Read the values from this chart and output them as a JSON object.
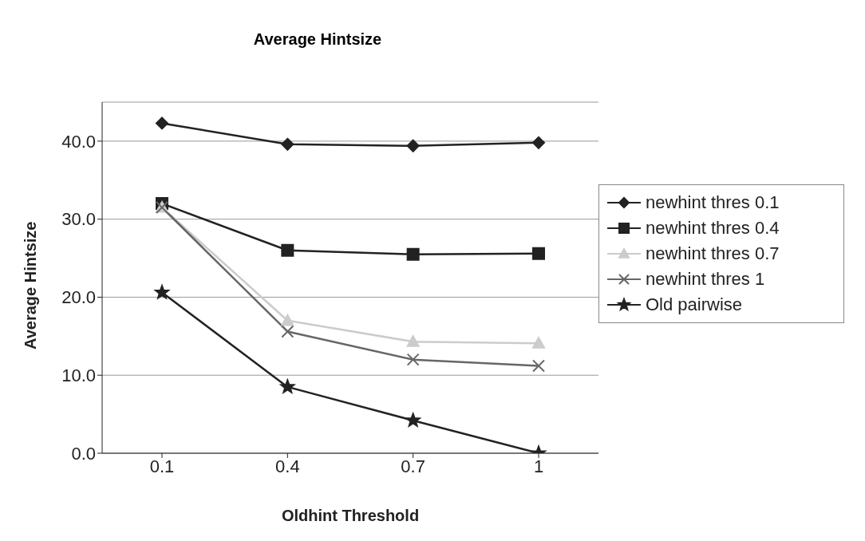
{
  "chart_data": {
    "type": "line",
    "title": "Average Hintsize",
    "xlabel": "Oldhint Threshold",
    "ylabel": "Average Hintsize",
    "categories": [
      "0.1",
      "0.4",
      "0.7",
      "1"
    ],
    "series": [
      {
        "name": "newhint thres 0.1",
        "color": "#222222",
        "marker": "diamond",
        "values": [
          42.3,
          39.6,
          39.4,
          39.8
        ]
      },
      {
        "name": "newhint thres 0.4",
        "color": "#222222",
        "marker": "square",
        "values": [
          32.0,
          26.0,
          25.5,
          25.6
        ]
      },
      {
        "name": "newhint thres 0.7",
        "color": "#cccccc",
        "marker": "triangle",
        "values": [
          31.5,
          17.0,
          14.3,
          14.1
        ]
      },
      {
        "name": "newhint thres 1",
        "color": "#666666",
        "marker": "cross",
        "values": [
          31.5,
          15.6,
          12.0,
          11.2
        ]
      },
      {
        "name": "Old pairwise",
        "color": "#222222",
        "marker": "star",
        "values": [
          20.6,
          8.5,
          4.2,
          0.0
        ]
      }
    ],
    "ylim": [
      0,
      45
    ],
    "yticks": [
      {
        "value": 0,
        "label": "0.0"
      },
      {
        "value": 10,
        "label": "10.0"
      },
      {
        "value": 20,
        "label": "20.0"
      },
      {
        "value": 30,
        "label": "30.0"
      },
      {
        "value": 40,
        "label": "40.0"
      }
    ],
    "grid": "y",
    "legend": "right",
    "line_style": "solid"
  }
}
